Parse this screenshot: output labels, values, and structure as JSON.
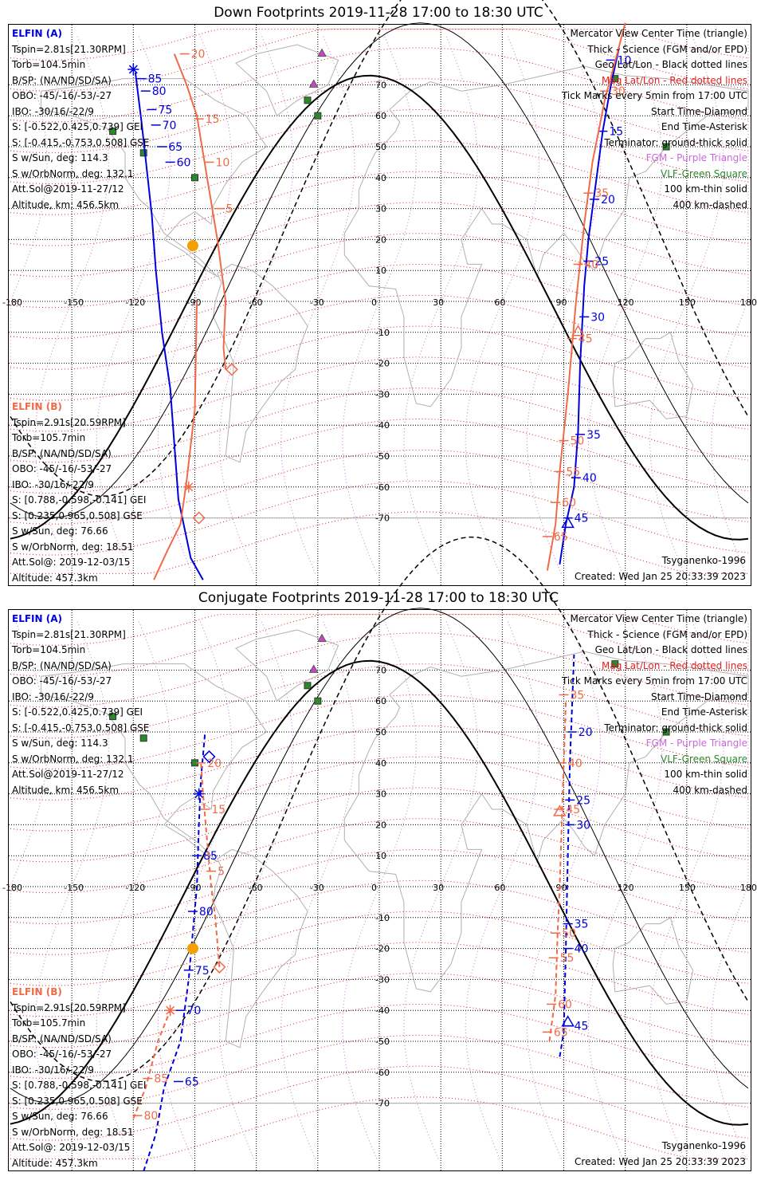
{
  "colors": {
    "elfin_a": "#0000dd",
    "elfin_b": "#f06a48",
    "mag_grid": "#e02020",
    "geo_grid": "#000000",
    "coast": "#b0b0b0",
    "mag_lon": "#d070e0",
    "vlf": "#2a8a2a",
    "fgm": "#cc44cc",
    "sun": "#f4a000"
  },
  "panels": [
    {
      "title": "Down Footprints 2019-11-28 17:00 to 18:30 UTC",
      "legend": [
        {
          "text": "Mercator View Center Time (triangle)",
          "color": "#000000"
        },
        {
          "text": "Thick - Science (FGM and/or EPD)",
          "color": "#000000"
        },
        {
          "text": "Geo Lat/Lon - Black dotted lines",
          "color": "#000000"
        },
        {
          "text": "Mag Lat/Lon - Red dotted lines",
          "color": "#e02020"
        },
        {
          "text": "Tick Marks every 5min from 17:00 UTC",
          "color": "#000000"
        },
        {
          "text": "Start Time-Diamond",
          "color": "#000000"
        },
        {
          "text": "End Time-Asterisk",
          "color": "#000000"
        },
        {
          "text": "Terminator: ground-thick solid",
          "color": "#000000"
        },
        {
          "text": "FGM - Purple Triangle",
          "color": "#cc66dd"
        },
        {
          "text": "VLF-Green Square",
          "color": "#2a8a2a"
        },
        {
          "text": "100 km-thin solid",
          "color": "#000000"
        },
        {
          "text": "400 km-dashed",
          "color": "#000000"
        }
      ],
      "elfin_a": {
        "name": "ELFIN (A)",
        "lines": [
          "Tspin=2.81s[21.30RPM]",
          "Torb=104.5min",
          "B/SP: (NA/ND/SD/SA)",
          "OBO: -45/-16/-53/-27",
          "IBO: -30/16/-22/9",
          "S: [-0.522,0.425,0.739] GEI",
          "S: [-0.415,-0.753,0.508] GSE",
          "S w/Sun, deg: 114.3",
          "S w/OrbNorm, deg: 132.1",
          "Att.Sol@2019-11-27/12",
          "Altitude, km: 456.5km"
        ]
      },
      "elfin_b": {
        "name": "ELFIN (B)",
        "lines": [
          "Tspin=2.91s[20.59RPM]",
          "Torb=105.7min",
          "B/SP: (NA/ND/SD/SA)",
          "OBO: -45/-16/-53/-27",
          "IBO: -30/16/-22/9",
          "S: [0.788,-0.598,-0.141] GEI",
          "S: [0.235,0.965,0.508] GSE",
          "S w/Sun, deg: 76.66",
          "S w/OrbNorm, deg: 18.51",
          "Att.Sol@: 2019-12-03/15",
          "Altitude: 457.3km"
        ]
      },
      "model": "Tsyganenko-1996",
      "created": "Created: Wed Jan 25 20:33:39 2023",
      "tracks": {
        "a1": {
          "pts": [
            [
              -86,
              -90
            ],
            [
              -92,
              -83
            ],
            [
              -98,
              -64
            ],
            [
              -102,
              -28
            ],
            [
              -106,
              -10
            ],
            [
              -109,
              10
            ],
            [
              -111,
              28
            ],
            [
              -114,
              46
            ],
            [
              -116,
              58
            ],
            [
              -119,
              74
            ]
          ],
          "ticks": [
            {
              "lon": -102,
              "lat": 45,
              "t": "60"
            },
            {
              "lon": -106,
              "lat": 50,
              "t": "65"
            },
            {
              "lon": -109,
              "lat": 57,
              "t": "70"
            },
            {
              "lon": -111,
              "lat": 62,
              "t": "75"
            },
            {
              "lon": -114,
              "lat": 68,
              "t": "80"
            },
            {
              "lon": -116,
              "lat": 72,
              "t": "85"
            }
          ],
          "asterisk": [
            -120,
            75
          ]
        },
        "a2": {
          "pts": [
            [
              88,
              -85
            ],
            [
              91,
              -72
            ],
            [
              95,
              -60
            ],
            [
              97,
              -42
            ],
            [
              98,
              -20
            ],
            [
              100,
              5
            ],
            [
              102,
              20
            ],
            [
              105,
              35
            ],
            [
              109,
              55
            ],
            [
              113,
              70
            ],
            [
              117,
              82
            ]
          ],
          "ticks": [
            {
              "lon": 92,
              "lat": -70,
              "t": "45"
            },
            {
              "lon": 96,
              "lat": -57,
              "t": "40"
            },
            {
              "lon": 98,
              "lat": -43,
              "t": "35"
            },
            {
              "lon": 100,
              "lat": -5,
              "t": "30"
            },
            {
              "lon": 102,
              "lat": 13,
              "t": "25"
            },
            {
              "lon": 105,
              "lat": 33,
              "t": "20"
            },
            {
              "lon": 109,
              "lat": 55,
              "t": "15"
            },
            {
              "lon": 113,
              "lat": 78,
              "t": "10"
            }
          ],
          "triangle": [
            92,
            -72
          ]
        },
        "b1": {
          "pts": [
            [
              -75,
              -22
            ],
            [
              -76,
              -15
            ],
            [
              -75,
              0
            ],
            [
              -79,
              20
            ],
            [
              -84,
              40
            ],
            [
              -89,
              60
            ],
            [
              -94,
              70
            ],
            [
              -100,
              80
            ]
          ],
          "ticks": [
            {
              "lon": -78,
              "lat": 30,
              "t": "5"
            },
            {
              "lon": -83,
              "lat": 45,
              "t": "10"
            },
            {
              "lon": -88,
              "lat": 59,
              "t": "15"
            },
            {
              "lon": -95,
              "lat": 80,
              "t": "20"
            }
          ],
          "diamond_start": [
            -72,
            -22
          ],
          "diamond_end": [
            -88,
            -70
          ]
        },
        "b2": {
          "pts": [
            [
              -110,
              -90
            ],
            [
              -103,
              -80
            ],
            [
              -97,
              -72
            ],
            [
              -94,
              -58
            ],
            [
              -90,
              -35
            ],
            [
              -89,
              0
            ]
          ],
          "ticks": [],
          "asterisk": [
            -93,
            -60
          ]
        },
        "b3": {
          "pts": [
            [
              82,
              -87
            ],
            [
              86,
              -72
            ],
            [
              88,
              -55
            ],
            [
              92,
              -30
            ],
            [
              96,
              0
            ],
            [
              100,
              25
            ],
            [
              104,
              45
            ],
            [
              110,
              65
            ],
            [
              116,
              80
            ],
            [
              120,
              90
            ]
          ],
          "ticks": [
            {
              "lon": 82,
              "lat": -76,
              "t": "65"
            },
            {
              "lon": 86,
              "lat": -65,
              "t": "60"
            },
            {
              "lon": 88,
              "lat": -55,
              "t": "55"
            },
            {
              "lon": 90,
              "lat": -45,
              "t": "50"
            },
            {
              "lon": 94,
              "lat": -12,
              "t": "45"
            },
            {
              "lon": 97,
              "lat": 12,
              "t": "40"
            },
            {
              "lon": 102,
              "lat": 35,
              "t": "35"
            },
            {
              "lon": 110,
              "lat": 68,
              "t": "30"
            }
          ],
          "triangle": [
            97,
            -10
          ]
        },
        "sun": [
          -91,
          18
        ]
      }
    },
    {
      "title": "Conjugate Footprints 2019-11-28 17:00 to 18:30 UTC",
      "legend": [
        {
          "text": "Mercator View Center Time (triangle)",
          "color": "#000000"
        },
        {
          "text": "Thick - Science (FGM and/or EPD)",
          "color": "#000000"
        },
        {
          "text": "Geo Lat/Lon - Black dotted lines",
          "color": "#000000"
        },
        {
          "text": "Mag Lat/Lon - Red dotted lines",
          "color": "#e02020"
        },
        {
          "text": "Tick Marks every 5min from 17:00 UTC",
          "color": "#000000"
        },
        {
          "text": "Start Time-Diamond",
          "color": "#000000"
        },
        {
          "text": "End Time-Asterisk",
          "color": "#000000"
        },
        {
          "text": "Terminator: ground-thick solid",
          "color": "#000000"
        },
        {
          "text": "FGM - Purple Triangle",
          "color": "#cc66dd"
        },
        {
          "text": "VLF-Green Square",
          "color": "#2a8a2a"
        },
        {
          "text": "100 km-thin solid",
          "color": "#000000"
        },
        {
          "text": "400 km-dashed",
          "color": "#000000"
        }
      ],
      "elfin_a": {
        "name": "ELFIN (A)",
        "lines": [
          "Tspin=2.81s[21.30RPM]",
          "Torb=104.5min",
          "B/SP: (NA/ND/SD/SA)",
          "OBO: -45/-16/-53/-27",
          "IBO: -30/16/-22/9",
          "S: [-0.522,0.425,0.739] GEI",
          "S: [-0.415,-0.753,0.508] GSE",
          "S w/Sun, deg: 114.3",
          "S w/OrbNorm, deg: 132.1",
          "Att.Sol@2019-11-27/12",
          "Altitude, km: 456.5km"
        ]
      },
      "elfin_b": {
        "name": "ELFIN (B)",
        "lines": [
          "Tspin=2.91s[20.59RPM]",
          "Torb=105.7min",
          "B/SP: (NA/ND/SD/SA)",
          "OBO: -45/-16/-53/-27",
          "IBO: -30/16/-22/9",
          "S: [0.788,-0.598,-0.141] GEI",
          "S: [0.235,0.965,0.508] GSE",
          "S w/Sun, deg: 76.66",
          "S w/OrbNorm, deg: 18.51",
          "Att.Sol@: 2019-12-03/15",
          "Altitude: 457.3km"
        ]
      },
      "model": "Tsyganenko-1996",
      "created": "Created: Wed Jan 25 20:33:39 2023",
      "tracks": {
        "a1": {
          "pts": [
            [
              -115,
              -92
            ],
            [
              -109,
              -80
            ],
            [
              -105,
              -65
            ],
            [
              -97,
              -50
            ],
            [
              -93,
              -30
            ],
            [
              -91,
              -15
            ],
            [
              -89,
              0
            ],
            [
              -88,
              20
            ],
            [
              -87,
              35
            ],
            [
              -85,
              50
            ]
          ],
          "ticks": [
            {
              "lon": -98,
              "lat": -63,
              "t": "65"
            },
            {
              "lon": -97,
              "lat": -40,
              "t": "70"
            },
            {
              "lon": -93,
              "lat": -27,
              "t": "75"
            },
            {
              "lon": -91,
              "lat": -8,
              "t": "80"
            },
            {
              "lon": -89,
              "lat": 10,
              "t": "85"
            }
          ],
          "asterisk": [
            -88,
            30
          ],
          "diamond": [
            -83,
            42
          ],
          "dashed": true
        },
        "a2": {
          "pts": [
            [
              88,
              -55
            ],
            [
              90,
              -47
            ],
            [
              91,
              -20
            ],
            [
              92,
              10
            ],
            [
              93,
              40
            ],
            [
              95,
              75
            ]
          ],
          "ticks": [
            {
              "lon": 92,
              "lat": -45,
              "t": "45"
            },
            {
              "lon": 92,
              "lat": -20,
              "t": "40"
            },
            {
              "lon": 92,
              "lat": -12,
              "t": "35"
            },
            {
              "lon": 93,
              "lat": 20,
              "t": "30"
            },
            {
              "lon": 93,
              "lat": 28,
              "t": "25"
            },
            {
              "lon": 94,
              "lat": 50,
              "t": "20"
            }
          ],
          "triangle": [
            92,
            -44
          ],
          "dashed": true
        },
        "b1": {
          "pts": [
            [
              -78,
              -26
            ],
            [
              -80,
              -10
            ],
            [
              -82,
              0
            ],
            [
              -84,
              15
            ],
            [
              -86,
              30
            ],
            [
              -87,
              40
            ]
          ],
          "ticks": [
            {
              "lon": -82,
              "lat": 5,
              "t": "5"
            },
            {
              "lon": -85,
              "lat": 25,
              "t": "15"
            },
            {
              "lon": -87,
              "lat": 40,
              "t": "20"
            }
          ],
          "diamond_start": [
            -78,
            -26
          ],
          "dashed": true
        },
        "b2": {
          "pts": [
            [
              -120,
              -75
            ],
            [
              -114,
              -65
            ],
            [
              -108,
              -50
            ],
            [
              -102,
              -40
            ]
          ],
          "ticks": [
            {
              "lon": -118,
              "lat": -74,
              "t": "80"
            },
            {
              "lon": -113,
              "lat": -62,
              "t": "85"
            }
          ],
          "asterisk": [
            -102,
            -40
          ],
          "dashed": true
        },
        "b3": {
          "pts": [
            [
              83,
              -50
            ],
            [
              86,
              -35
            ],
            [
              87,
              -15
            ],
            [
              88,
              0
            ],
            [
              89,
              20
            ],
            [
              90,
              40
            ],
            [
              91,
              60
            ]
          ],
          "ticks": [
            {
              "lon": 82,
              "lat": -47,
              "t": "65"
            },
            {
              "lon": 84,
              "lat": -38,
              "t": "60"
            },
            {
              "lon": 85,
              "lat": -23,
              "t": "55"
            },
            {
              "lon": 86,
              "lat": -15,
              "t": "50"
            },
            {
              "lon": 88,
              "lat": 25,
              "t": "45"
            },
            {
              "lon": 89,
              "lat": 40,
              "t": "40"
            },
            {
              "lon": 90,
              "lat": 62,
              "t": "35"
            }
          ],
          "triangle": [
            88,
            24
          ],
          "dashed": true
        },
        "sun": [
          -91,
          -20
        ]
      }
    }
  ],
  "lon_labels": [
    "-180",
    "-150",
    "-120",
    "-90",
    "-60",
    "-30",
    "0",
    "30",
    "60",
    "90",
    "120",
    "150",
    "180"
  ],
  "lat_labels": [
    "70",
    "60",
    "50",
    "40",
    "30",
    "20",
    "10",
    "0",
    "-10",
    "-20",
    "-30",
    "-40",
    "-50",
    "-60",
    "-70"
  ]
}
